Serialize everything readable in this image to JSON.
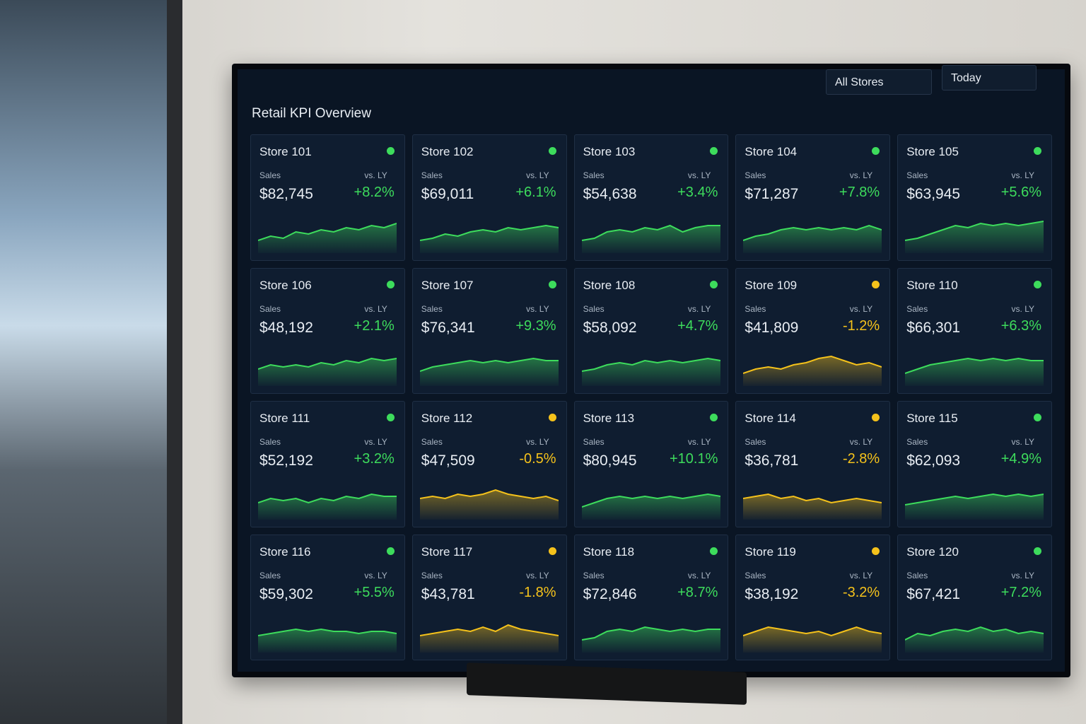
{
  "header": {
    "title": "Retail KPI Overview",
    "filters": [
      "All Stores",
      "Today"
    ]
  },
  "labels": {
    "sales": "Sales",
    "vs": "vs. LY"
  },
  "cards": [
    {
      "name": "Store 101",
      "sales": "$82,745",
      "change": "+8.2%",
      "color": "#3ddc5c",
      "trend": [
        3,
        4,
        3.5,
        5,
        4.5,
        5.5,
        5,
        6,
        5.5,
        6.5,
        6,
        7
      ]
    },
    {
      "name": "Store 102",
      "sales": "$69,011",
      "change": "+6.1%",
      "color": "#3ddc5c",
      "trend": [
        3,
        3.5,
        4.5,
        4,
        5,
        5.5,
        5,
        6,
        5.5,
        6,
        6.5,
        6
      ]
    },
    {
      "name": "Store 103",
      "sales": "$54,638",
      "change": "+3.4%",
      "color": "#3ddc5c",
      "trend": [
        3,
        3.5,
        5,
        5.5,
        5,
        6,
        5.5,
        6.5,
        5,
        6,
        6.5,
        6.5
      ]
    },
    {
      "name": "Store 104",
      "sales": "$71,287",
      "change": "+7.8%",
      "color": "#3ddc5c",
      "trend": [
        3,
        4,
        4.5,
        5.5,
        6,
        5.5,
        6,
        5.5,
        6,
        5.5,
        6.5,
        5.5
      ]
    },
    {
      "name": "Store 105",
      "sales": "$63,945",
      "change": "+5.6%",
      "color": "#3ddc5c",
      "trend": [
        3,
        3.5,
        4.5,
        5.5,
        6.5,
        6,
        7,
        6.5,
        7,
        6.5,
        7,
        7.5
      ]
    },
    {
      "name": "Store 106",
      "sales": "$48,192",
      "change": "+2.1%",
      "color": "#3ddc5c",
      "trend": [
        4,
        5,
        4.5,
        5,
        4.5,
        5.5,
        5,
        6,
        5.5,
        6.5,
        6,
        6.5
      ]
    },
    {
      "name": "Store 107",
      "sales": "$76,341",
      "change": "+9.3%",
      "color": "#3ddc5c",
      "trend": [
        3.5,
        4.5,
        5,
        5.5,
        6,
        5.5,
        6,
        5.5,
        6,
        6.5,
        6,
        6
      ]
    },
    {
      "name": "Store 108",
      "sales": "$58,092",
      "change": "+4.7%",
      "color": "#3ddc5c",
      "trend": [
        3.5,
        4,
        5,
        5.5,
        5,
        6,
        5.5,
        6,
        5.5,
        6,
        6.5,
        6
      ]
    },
    {
      "name": "Store 109",
      "sales": "$41,809",
      "change": "-1.2%",
      "color": "#f5c21b",
      "trend": [
        3,
        4,
        4.5,
        4,
        5,
        5.5,
        6.5,
        7,
        6,
        5,
        5.5,
        4.5
      ]
    },
    {
      "name": "Store 110",
      "sales": "$66,301",
      "change": "+6.3%",
      "color": "#3ddc5c",
      "trend": [
        3,
        4,
        5,
        5.5,
        6,
        6.5,
        6,
        6.5,
        6,
        6.5,
        6,
        6
      ]
    },
    {
      "name": "Store 111",
      "sales": "$52,192",
      "change": "+3.2%",
      "color": "#3ddc5c",
      "trend": [
        4,
        5,
        4.5,
        5,
        4,
        5,
        4.5,
        5.5,
        5,
        6,
        5.5,
        5.5
      ]
    },
    {
      "name": "Store 112",
      "sales": "$47,509",
      "change": "-0.5%",
      "color": "#f5c21b",
      "trend": [
        5,
        5.5,
        5,
        6,
        5.5,
        6,
        7,
        6,
        5.5,
        5,
        5.5,
        4.5
      ]
    },
    {
      "name": "Store 113",
      "sales": "$80,945",
      "change": "+10.1%",
      "color": "#3ddc5c",
      "trend": [
        3,
        4,
        5,
        5.5,
        5,
        5.5,
        5,
        5.5,
        5,
        5.5,
        6,
        5.5
      ]
    },
    {
      "name": "Store 114",
      "sales": "$36,781",
      "change": "-2.8%",
      "color": "#f5c21b",
      "trend": [
        5,
        5.5,
        6,
        5,
        5.5,
        4.5,
        5,
        4,
        4.5,
        5,
        4.5,
        4
      ]
    },
    {
      "name": "Store 115",
      "sales": "$62,093",
      "change": "+4.9%",
      "color": "#3ddc5c",
      "trend": [
        3.5,
        4,
        4.5,
        5,
        5.5,
        5,
        5.5,
        6,
        5.5,
        6,
        5.5,
        6
      ]
    },
    {
      "name": "Store 116",
      "sales": "$59,302",
      "change": "+5.5%",
      "color": "#3ddc5c",
      "trend": [
        4,
        4.5,
        5,
        5.5,
        5,
        5.5,
        5,
        5,
        4.5,
        5,
        5,
        4.5
      ]
    },
    {
      "name": "Store 117",
      "sales": "$43,781",
      "change": "-1.8%",
      "color": "#f5c21b",
      "trend": [
        4,
        4.5,
        5,
        5.5,
        5,
        6,
        5,
        6.5,
        5.5,
        5,
        4.5,
        4
      ]
    },
    {
      "name": "Store 118",
      "sales": "$72,846",
      "change": "+8.7%",
      "color": "#3ddc5c",
      "trend": [
        3,
        3.5,
        5,
        5.5,
        5,
        6,
        5.5,
        5,
        5.5,
        5,
        5.5,
        5.5
      ]
    },
    {
      "name": "Store 119",
      "sales": "$38,192",
      "change": "-3.2%",
      "color": "#f5c21b",
      "trend": [
        4,
        5,
        6,
        5.5,
        5,
        4.5,
        5,
        4,
        5,
        6,
        5,
        4.5
      ]
    },
    {
      "name": "Store 120",
      "sales": "$67,421",
      "change": "+7.2%",
      "color": "#3ddc5c",
      "trend": [
        3,
        4.5,
        4,
        5,
        5.5,
        5,
        6,
        5,
        5.5,
        4.5,
        5,
        4.5
      ]
    }
  ]
}
